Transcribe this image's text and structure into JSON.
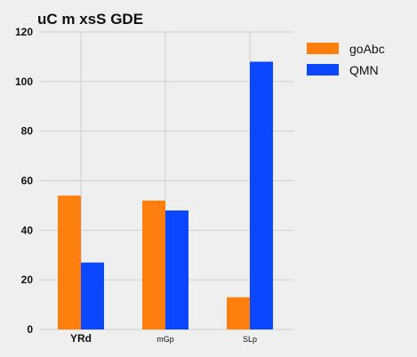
{
  "chart_data": {
    "type": "bar",
    "title": "uC m xsS GDE",
    "xlabel": "",
    "ylabel": "",
    "categories": [
      "YRd",
      "mGp",
      "SLp"
    ],
    "series": [
      {
        "name": "goAbc",
        "color": "#ff7f0e",
        "values": [
          54,
          52,
          13
        ]
      },
      {
        "name": "QMN",
        "color": "#0a47ff",
        "values": [
          27,
          48,
          108
        ]
      }
    ],
    "ylim": [
      0,
      120
    ],
    "yticks": [
      0,
      20,
      40,
      60,
      80,
      100,
      120
    ],
    "grid": true,
    "legend_position": "top-right"
  }
}
